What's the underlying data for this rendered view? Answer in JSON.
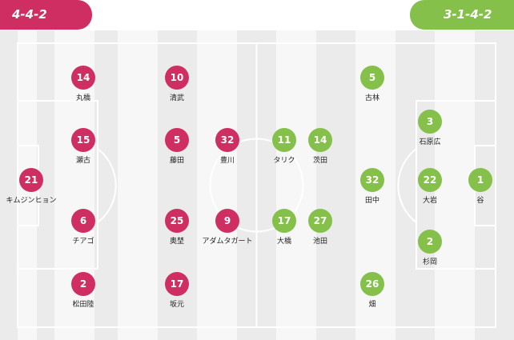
{
  "home": {
    "formation": "4-4-2",
    "color": "#cf2e62",
    "players": [
      {
        "number": "21",
        "name": "キムジンヒョン"
      },
      {
        "number": "14",
        "name": "丸橋"
      },
      {
        "number": "15",
        "name": "瀬古"
      },
      {
        "number": "6",
        "name": "チアゴ"
      },
      {
        "number": "2",
        "name": "松田陸"
      },
      {
        "number": "10",
        "name": "清武"
      },
      {
        "number": "5",
        "name": "藤田"
      },
      {
        "number": "25",
        "name": "奥埜"
      },
      {
        "number": "17",
        "name": "坂元"
      },
      {
        "number": "32",
        "name": "豊川"
      },
      {
        "number": "9",
        "name": "アダムタガート"
      }
    ]
  },
  "away": {
    "formation": "3-1-4-2",
    "color": "#84c04a",
    "players": [
      {
        "number": "1",
        "name": "谷"
      },
      {
        "number": "3",
        "name": "石原広"
      },
      {
        "number": "22",
        "name": "大岩"
      },
      {
        "number": "2",
        "name": "杉岡"
      },
      {
        "number": "32",
        "name": "田中"
      },
      {
        "number": "5",
        "name": "古林"
      },
      {
        "number": "14",
        "name": "茨田"
      },
      {
        "number": "27",
        "name": "池田"
      },
      {
        "number": "26",
        "name": "畑"
      },
      {
        "number": "11",
        "name": "タリク"
      },
      {
        "number": "17",
        "name": "大橋"
      }
    ]
  }
}
